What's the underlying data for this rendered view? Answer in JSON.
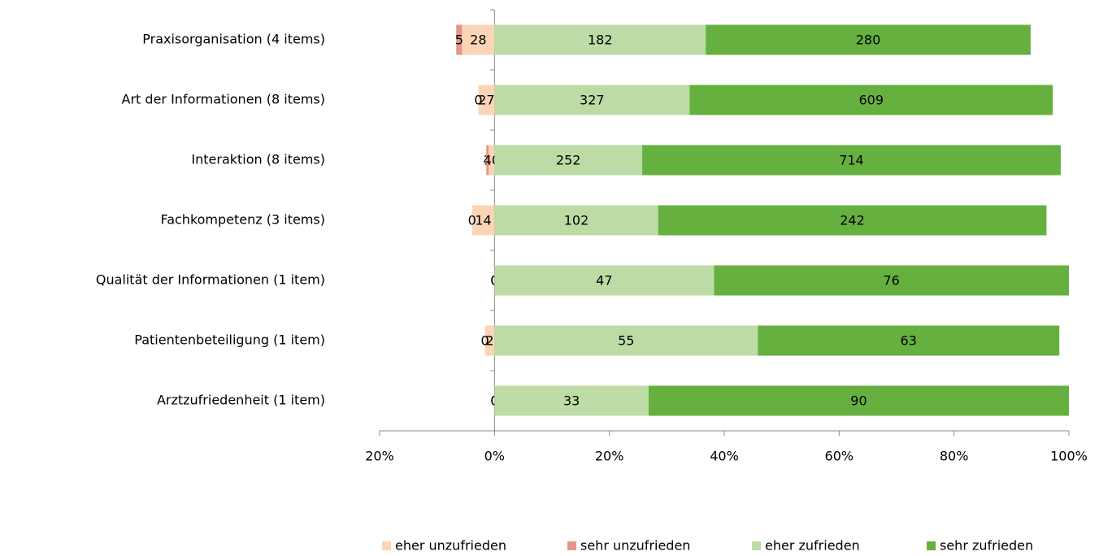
{
  "chart_data": {
    "type": "bar",
    "orientation": "horizontal",
    "stacking": "percent",
    "categories": [
      "Praxisorganisation (4 items)",
      "Art der Informationen (8 items)",
      "Interaktion (8 items)",
      "Fachkompetenz (3 items)",
      "Qualität der Informationen (1 item)",
      "Patientenbeteiligung (1 item)",
      "Arztzufriedenheit (1 item)"
    ],
    "series": [
      {
        "name": "eher unzufrieden",
        "color": "#fbd5b5",
        "side": "left",
        "values": [
          28,
          27,
          10,
          14,
          0,
          2,
          0
        ]
      },
      {
        "name": "sehr unzufrieden",
        "color": "#e6958a",
        "side": "left",
        "values": [
          5,
          0,
          4,
          0,
          0,
          0,
          0
        ]
      },
      {
        "name": "eher zufrieden",
        "color": "#bcdba5",
        "side": "right",
        "values": [
          182,
          327,
          252,
          102,
          47,
          55,
          33
        ]
      },
      {
        "name": "sehr zufrieden",
        "color": "#66b040",
        "side": "right",
        "values": [
          280,
          609,
          714,
          242,
          76,
          63,
          90
        ]
      }
    ],
    "xlim": [
      -20,
      100
    ],
    "xticks": [
      {
        "value": -20,
        "label": "20%"
      },
      {
        "value": 0,
        "label": "0%"
      },
      {
        "value": 20,
        "label": "20%"
      },
      {
        "value": 40,
        "label": "40%"
      },
      {
        "value": 60,
        "label": "60%"
      },
      {
        "value": 80,
        "label": "80%"
      },
      {
        "value": 100,
        "label": "100%"
      }
    ],
    "grid": false,
    "legend": "bottom"
  }
}
